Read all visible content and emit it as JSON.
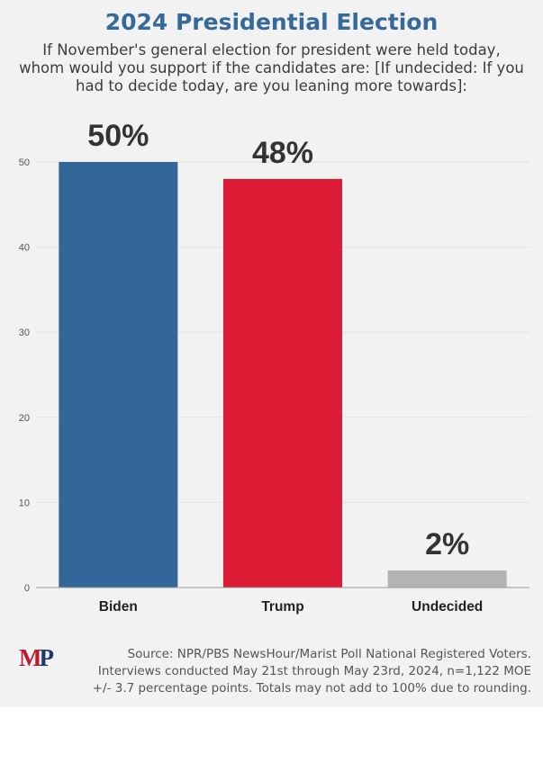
{
  "title": "2024 Presidential Election",
  "subtitle": "If November's general election for president were held today, whom would you support if the candidates are: [If undecided: If you had to decide today, are you leaning more towards]:",
  "logo": {
    "m": "M",
    "p": "P"
  },
  "source": "Source: NPR/PBS NewsHour/Marist Poll National Registered Voters. Interviews conducted May 21st through May 23rd, 2024, n=1,122 MOE +/- 3.7 percentage points. Totals may not add to 100% due to rounding.",
  "chart_data": {
    "type": "bar",
    "categories": [
      "Biden",
      "Trump",
      "Undecided"
    ],
    "values": [
      50,
      48,
      2
    ],
    "data_labels": [
      "50%",
      "48%",
      "2%"
    ],
    "colors": [
      "#336699",
      "#dc1b34",
      "#b3b3b3"
    ],
    "ylim": [
      0,
      50
    ],
    "yticks": [
      0,
      10,
      20,
      30,
      40,
      50
    ],
    "grid": true
  }
}
